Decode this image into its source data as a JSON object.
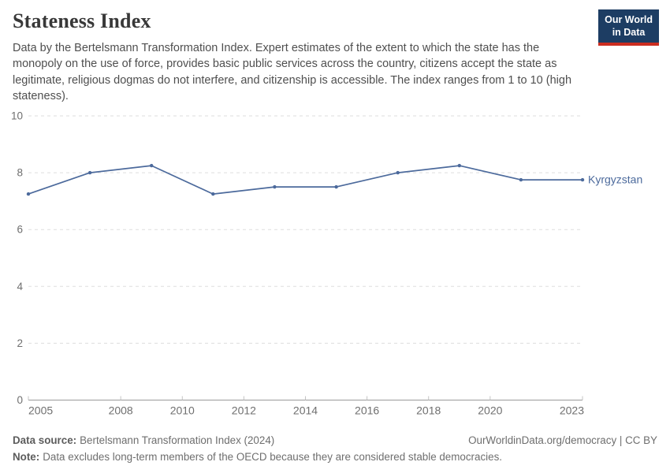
{
  "header": {
    "title": "Stateness Index",
    "subtitle": "Data by the Bertelsmann Transformation Index. Expert estimates of the extent to which the state has the monopoly on the use of force, provides basic public services across the country, citizens accept the state as legitimate, religious dogmas do not interfere, and citizenship is accessible. The index ranges from 1 to 10 (high stateness).",
    "logo": {
      "line1": "Our World",
      "line2": "in Data",
      "bg_color": "#1d3d63",
      "accent_color": "#cb2d20"
    }
  },
  "chart_data": {
    "type": "line",
    "title": "Stateness Index",
    "xlabel": "",
    "ylabel": "",
    "xlim": [
      2005,
      2023
    ],
    "ylim": [
      0,
      10
    ],
    "grid": "horizontal-dashed",
    "legend_position": "right-of-line-end",
    "x_ticks": [
      2005,
      2008,
      2010,
      2012,
      2014,
      2016,
      2018,
      2020,
      2023
    ],
    "y_ticks": [
      0,
      2,
      4,
      6,
      8,
      10
    ],
    "series": [
      {
        "name": "Kyrgyzstan",
        "color": "#4c6a9c",
        "x": [
          2005,
          2007,
          2009,
          2011,
          2013,
          2015,
          2017,
          2019,
          2021,
          2023
        ],
        "values": [
          7.25,
          8.0,
          8.25,
          7.25,
          7.5,
          7.5,
          8.0,
          8.25,
          7.75,
          7.75
        ]
      }
    ],
    "style": {
      "grid_color": "#dddddd",
      "axis_color": "#999999",
      "tick_mark_color": "#c4c4c4",
      "tick_label_color": "#6f6f6f"
    }
  },
  "footer": {
    "data_source_label": "Data source:",
    "data_source_text": "Bertelsmann Transformation Index (2024)",
    "attribution": "OurWorldinData.org/democracy | CC BY",
    "note_label": "Note:",
    "note_text": "Data excludes long-term members of the OECD because they are considered stable democracies."
  }
}
